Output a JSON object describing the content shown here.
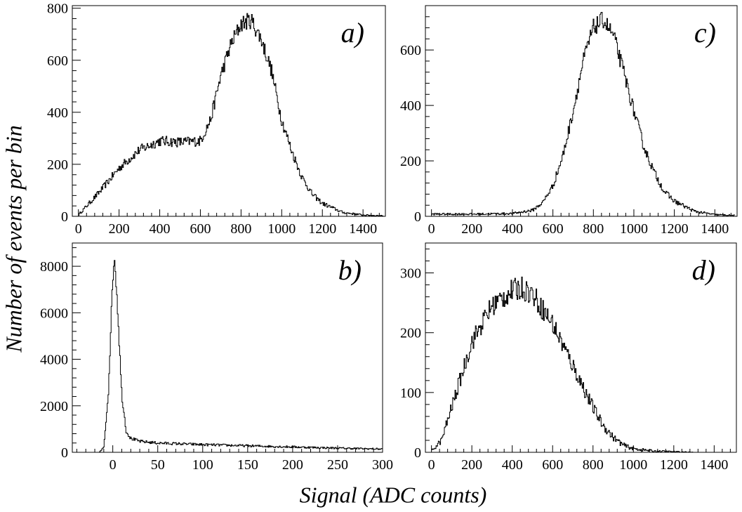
{
  "figure": {
    "ylabel": "Number of events per bin",
    "xlabel": "Signal (ADC counts)"
  },
  "chart_data": [
    {
      "type": "line",
      "panel": "a)",
      "xlim": [
        -30,
        1510
      ],
      "ylim": [
        0,
        810
      ],
      "xticks": [
        0,
        200,
        400,
        600,
        800,
        1000,
        1200,
        1400
      ],
      "yticks": [
        0,
        200,
        400,
        600,
        800
      ],
      "x": [
        0,
        100,
        200,
        300,
        400,
        500,
        600,
        650,
        700,
        750,
        800,
        850,
        900,
        950,
        1000,
        1050,
        1100,
        1150,
        1200,
        1300,
        1400,
        1500
      ],
      "y": [
        5,
        90,
        185,
        255,
        290,
        285,
        290,
        370,
        540,
        660,
        740,
        755,
        680,
        560,
        370,
        250,
        150,
        85,
        50,
        15,
        5,
        2
      ]
    },
    {
      "type": "line",
      "panel": "b)",
      "xlim": [
        -45,
        300
      ],
      "ylim": [
        0,
        9000
      ],
      "xticks": [
        0,
        50,
        100,
        150,
        200,
        250,
        300
      ],
      "yticks": [
        0,
        2000,
        4000,
        6000,
        8000
      ],
      "x": [
        -45,
        -15,
        -10,
        -5,
        0,
        2,
        5,
        10,
        15,
        20,
        30,
        50,
        100,
        150,
        200,
        250,
        300
      ],
      "y": [
        0,
        0,
        200,
        2500,
        7500,
        8400,
        6500,
        2500,
        900,
        600,
        470,
        400,
        330,
        280,
        230,
        180,
        140
      ]
    },
    {
      "type": "line",
      "panel": "c)",
      "xlim": [
        -30,
        1510
      ],
      "ylim": [
        0,
        760
      ],
      "xticks": [
        0,
        200,
        400,
        600,
        800,
        1000,
        1200,
        1400
      ],
      "yticks": [
        0,
        200,
        400,
        600
      ],
      "x": [
        0,
        200,
        400,
        500,
        550,
        600,
        650,
        700,
        750,
        800,
        850,
        900,
        950,
        1000,
        1050,
        1100,
        1150,
        1200,
        1300,
        1400,
        1500
      ],
      "y": [
        8,
        8,
        10,
        22,
        50,
        110,
        220,
        380,
        560,
        680,
        710,
        650,
        520,
        380,
        250,
        160,
        90,
        55,
        18,
        6,
        3
      ]
    },
    {
      "type": "line",
      "panel": "d)",
      "xlim": [
        -30,
        1510
      ],
      "ylim": [
        0,
        350
      ],
      "xticks": [
        0,
        200,
        400,
        600,
        800,
        1000,
        1200,
        1400
      ],
      "yticks": [
        0,
        100,
        200,
        300
      ],
      "x": [
        0,
        50,
        100,
        200,
        300,
        400,
        450,
        500,
        600,
        700,
        800,
        850,
        900,
        950,
        1000,
        1100,
        1200,
        1300,
        1400,
        1500
      ],
      "y": [
        2,
        20,
        75,
        185,
        245,
        270,
        275,
        265,
        215,
        145,
        75,
        45,
        25,
        12,
        6,
        2,
        1,
        0,
        0,
        0
      ]
    }
  ]
}
